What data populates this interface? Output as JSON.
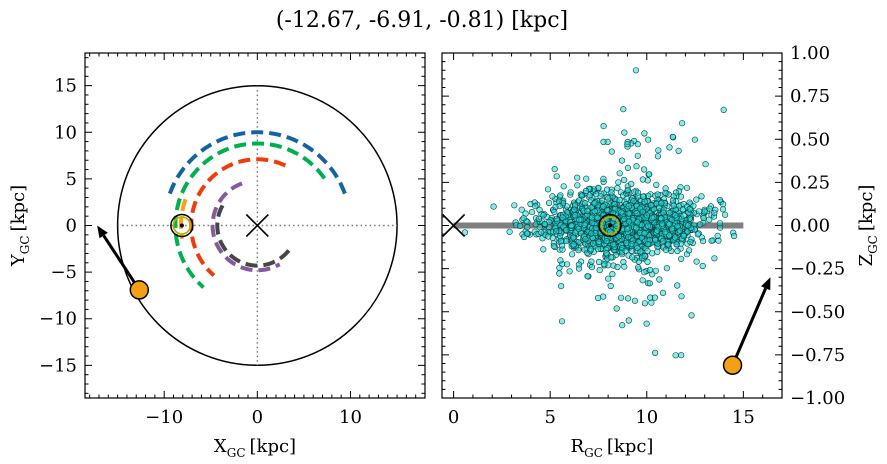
{
  "title": "(-12.67, -6.91, -0.81) [kpc]",
  "colors": {
    "blue": "#1464a0",
    "green": "#00b050",
    "red": "#f03c0a",
    "purple": "#825aa0",
    "dark": "#464646",
    "orange": "#ffa014",
    "cyan": "#22dcdc",
    "marker": "#f5a014"
  },
  "chart_data": [
    {
      "type": "line",
      "panel": "top-down",
      "xlabel_main": "X",
      "xlabel_sub": "GC",
      "xlabel_unit": "[kpc]",
      "ylabel_main": "Y",
      "ylabel_sub": "GC",
      "ylabel_unit": "[kpc]",
      "xlim": [
        -18.5,
        18
      ],
      "ylim": [
        -18.5,
        18.5
      ],
      "xticks": [
        -10,
        0,
        10
      ],
      "xtick_labels": [
        "−10",
        "0",
        "10"
      ],
      "yticks": [
        -15,
        -10,
        -5,
        0,
        5,
        10,
        15
      ],
      "ytick_labels": [
        "−15",
        "−10",
        "−5",
        "0",
        "5",
        "10",
        "15"
      ],
      "boundary_circle_radius": 15,
      "galactic_center": [
        0,
        0
      ],
      "sun": [
        -8.1,
        0
      ],
      "object": [
        -12.67,
        -6.91
      ],
      "object_arrow_tip": [
        -17.2,
        0
      ],
      "arms": [
        {
          "color_key": "blue",
          "radius": 10.0,
          "start_deg": 20,
          "end_deg": 160
        },
        {
          "color_key": "green",
          "radius": 8.8,
          "start_deg": 35,
          "end_deg": 230
        },
        {
          "color_key": "orange",
          "radius": 8.2,
          "start_deg": 160,
          "end_deg": 190
        },
        {
          "color_key": "red",
          "radius": 7.1,
          "start_deg": 65,
          "end_deg": 230
        },
        {
          "color_key": "purple",
          "radius": 4.8,
          "start_deg": 110,
          "end_deg": 300
        },
        {
          "color_key": "dark",
          "radius": 4.3,
          "start_deg": 150,
          "end_deg": 330
        }
      ]
    },
    {
      "type": "scatter",
      "panel": "side-view",
      "xlabel_main": "R",
      "xlabel_sub": "GC",
      "xlabel_unit": "[kpc]",
      "ylabel_main": "Z",
      "ylabel_sub": "GC",
      "ylabel_unit": "[kpc]",
      "xlim": [
        -0.6,
        17
      ],
      "ylim": [
        -1.0,
        1.0
      ],
      "xticks": [
        0,
        5,
        10,
        15
      ],
      "xtick_labels": [
        "0",
        "5",
        "10",
        "15"
      ],
      "yticks": [
        -1.0,
        -0.75,
        -0.5,
        -0.25,
        0.0,
        0.25,
        0.5,
        0.75,
        1.0
      ],
      "ytick_labels": [
        "−1.00",
        "−0.75",
        "−0.50",
        "−0.25",
        "0.00",
        "0.25",
        "0.50",
        "0.75",
        "1.00"
      ],
      "disk_band": {
        "r_range": [
          0,
          15
        ],
        "z": 0
      },
      "galactic_center": [
        0,
        0
      ],
      "sun": [
        8.1,
        0
      ],
      "object": [
        14.44,
        -0.81
      ],
      "object_arrow_tip": [
        16.4,
        -0.3
      ],
      "scatter_cloud": {
        "count": 1800,
        "r_center": 8.8,
        "r_spread": 2.3,
        "z_spread": 0.08,
        "z_outlier_spread": 0.35
      }
    }
  ]
}
